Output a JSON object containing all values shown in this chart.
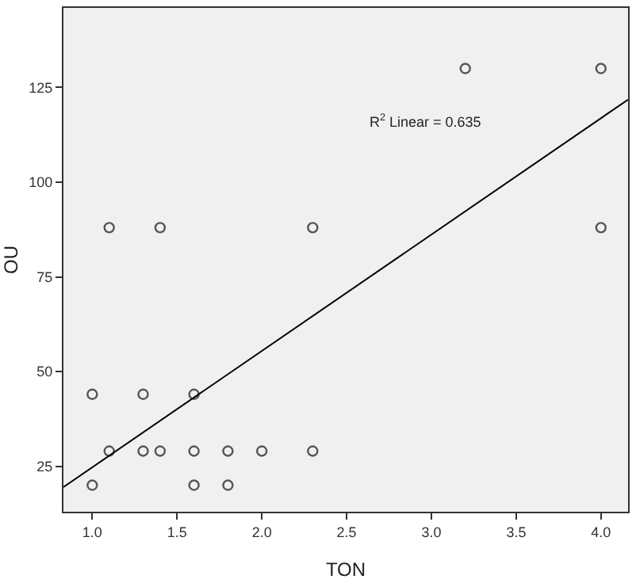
{
  "chart_data": {
    "type": "scatter",
    "xlabel": "TON",
    "ylabel": "OU",
    "annotations": [
      "R$^{2}$ Linear = 0.635"
    ],
    "series": [
      {
        "marker": "circle",
        "color": "#555555",
        "x": [
          1.1,
          1.4,
          2.3,
          3.2,
          4.0,
          4.0,
          1.0,
          1.3,
          1.6,
          1.1,
          1.3,
          1.4,
          1.6,
          1.8,
          2.0,
          2.3,
          1.0,
          1.6,
          1.8
        ],
        "values": [
          88,
          88,
          88,
          130,
          130,
          88,
          44,
          44,
          44,
          29,
          29,
          29,
          29,
          29,
          29,
          29,
          20,
          20,
          20
        ]
      },
      {
        "type": "line",
        "marker": "none",
        "color": "#000000",
        "x": [
          0.83,
          4.16
        ],
        "values": [
          19.5,
          121.8
        ]
      }
    ],
    "xlim": [
      0.83,
      4.16
    ],
    "ylim": [
      13,
      146
    ],
    "xticks": [
      {
        "value": 1,
        "label": "1.0"
      },
      {
        "value": 1.5,
        "label": "1.5"
      },
      {
        "value": 2,
        "label": "2.0"
      },
      {
        "value": 2.5,
        "label": "2.5"
      },
      {
        "value": 3,
        "label": "3.0"
      },
      {
        "value": 3.5,
        "label": "3.5"
      },
      {
        "value": 4,
        "label": "4.0"
      }
    ],
    "yticks": [
      25,
      50,
      75,
      100,
      125
    ],
    "grid": false,
    "legend": false
  }
}
